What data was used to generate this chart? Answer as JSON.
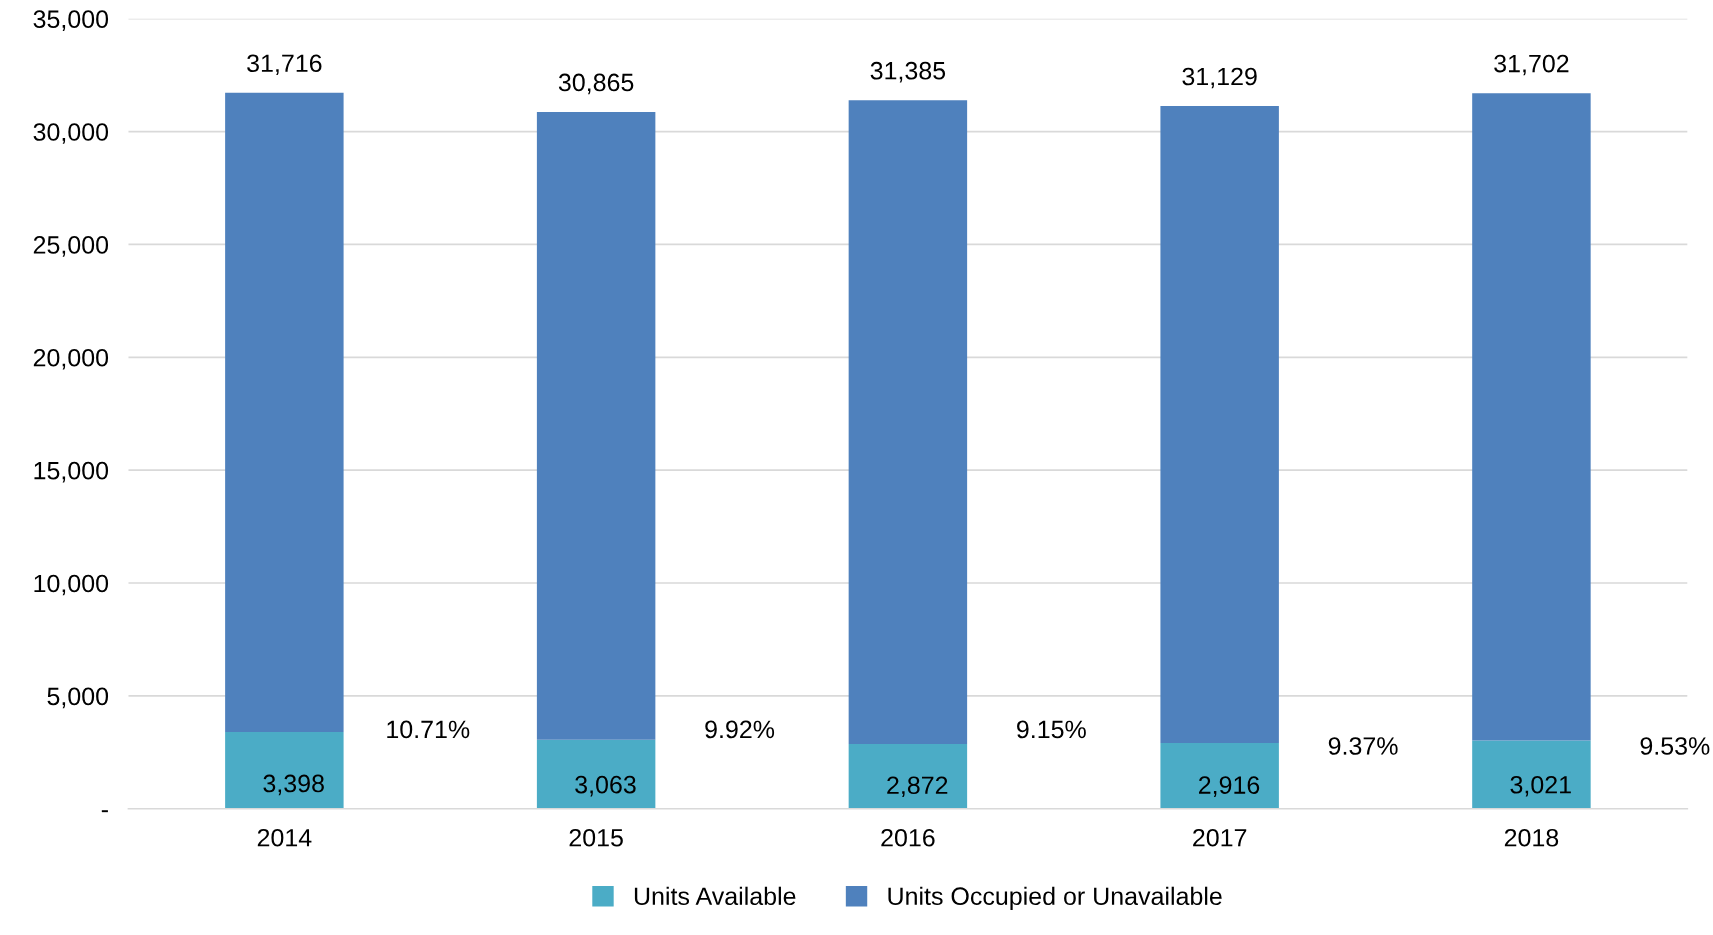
{
  "chart_data": {
    "type": "bar",
    "stacked": true,
    "categories": [
      "2014",
      "2015",
      "2016",
      "2017",
      "2018"
    ],
    "series": [
      {
        "name": "Units Available",
        "color": "#4bacc6",
        "values": [
          3398,
          3063,
          2872,
          2916,
          3021
        ],
        "value_labels": [
          "3,398",
          "3,063",
          "2,872",
          "2,916",
          "3,021"
        ]
      },
      {
        "name": "Units Occupied or Unavailable",
        "color": "#4f81bd",
        "values": [
          28318,
          27802,
          28513,
          28213,
          28681
        ]
      }
    ],
    "totals": [
      "31,716",
      "30,865",
      "31,385",
      "31,129",
      "31,702"
    ],
    "annotations": [
      "10.71%",
      "9.92%",
      "9.15%",
      "9.37%",
      "9.53%"
    ],
    "ylim": [
      0,
      35000
    ],
    "yticks": [
      {
        "value": 0,
        "label": "-"
      },
      {
        "value": 5000,
        "label": "5,000"
      },
      {
        "value": 10000,
        "label": "10,000"
      },
      {
        "value": 15000,
        "label": "15,000"
      },
      {
        "value": 20000,
        "label": "20,000"
      },
      {
        "value": 25000,
        "label": "25,000"
      },
      {
        "value": 30000,
        "label": "30,000"
      },
      {
        "value": 35000,
        "label": "35,000"
      }
    ],
    "grid": "y",
    "legend": "bottom"
  }
}
